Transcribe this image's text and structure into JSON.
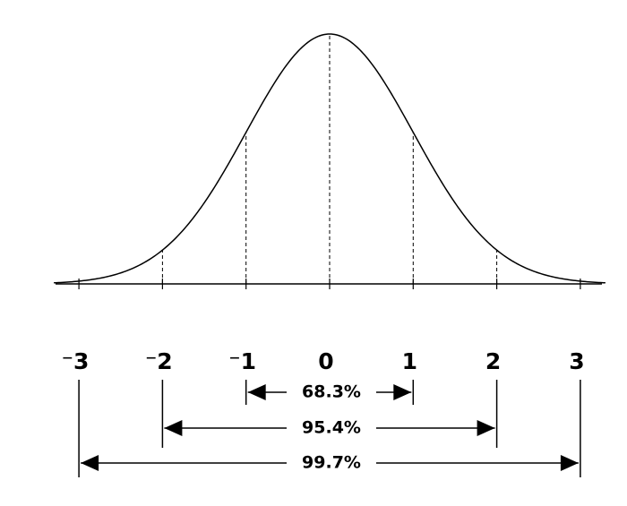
{
  "tick_labels": [
    "⁻3",
    "⁻2",
    "⁻1",
    "0",
    "1",
    "2",
    "3"
  ],
  "intervals": [
    {
      "label": "68.3%"
    },
    {
      "label": "95.4%"
    },
    {
      "label": "99.7%"
    }
  ]
}
